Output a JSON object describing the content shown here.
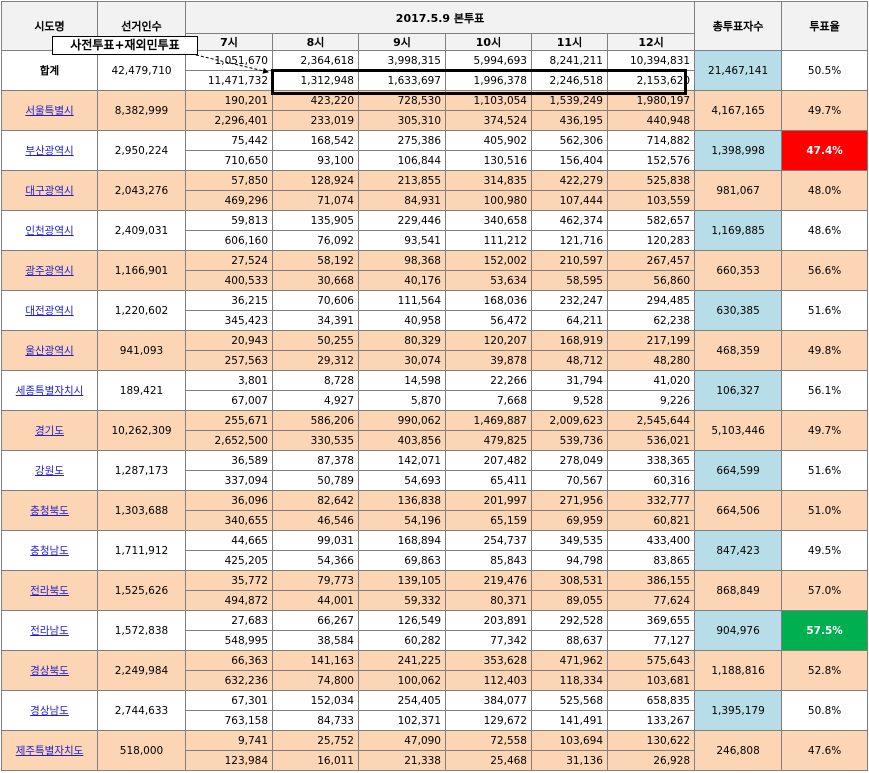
{
  "header": {
    "region": "시도명",
    "electors": "선거인수",
    "date": "2017.5.9 본투표",
    "hours": [
      "7시",
      "8시",
      "9시",
      "10시",
      "11시",
      "12시"
    ],
    "total": "총투표자수",
    "rate": "투표율"
  },
  "annotation": "사전투표+재외민투표",
  "rows": [
    {
      "name": "합계",
      "electors": "42,479,710",
      "line1": [
        "1,051,670",
        "2,364,618",
        "3,998,315",
        "5,994,693",
        "8,241,211",
        "10,394,831"
      ],
      "line2": [
        "11,471,732",
        "1,312,948",
        "1,633,697",
        "1,996,378",
        "2,246,518",
        "2,153,620"
      ],
      "total": "21,467,141",
      "rate": "50.5%"
    },
    {
      "name": "서울특별시",
      "electors": "8,382,999",
      "line1": [
        "190,201",
        "423,220",
        "728,530",
        "1,103,054",
        "1,539,249",
        "1,980,197"
      ],
      "line2": [
        "2,296,401",
        "233,019",
        "305,310",
        "374,524",
        "436,195",
        "440,948"
      ],
      "total": "4,167,165",
      "rate": "49.7%"
    },
    {
      "name": "부산광역시",
      "electors": "2,950,224",
      "line1": [
        "75,442",
        "168,542",
        "275,386",
        "405,902",
        "562,306",
        "714,882"
      ],
      "line2": [
        "710,650",
        "93,100",
        "106,844",
        "130,516",
        "156,404",
        "152,576"
      ],
      "total": "1,398,998",
      "rate": "47.4%"
    },
    {
      "name": "대구광역시",
      "electors": "2,043,276",
      "line1": [
        "57,850",
        "128,924",
        "213,855",
        "314,835",
        "422,279",
        "525,838"
      ],
      "line2": [
        "469,296",
        "71,074",
        "84,931",
        "100,980",
        "107,444",
        "103,559"
      ],
      "total": "981,067",
      "rate": "48.0%"
    },
    {
      "name": "인천광역시",
      "electors": "2,409,031",
      "line1": [
        "59,813",
        "135,905",
        "229,446",
        "340,658",
        "462,374",
        "582,657"
      ],
      "line2": [
        "606,160",
        "76,092",
        "93,541",
        "111,212",
        "121,716",
        "120,283"
      ],
      "total": "1,169,885",
      "rate": "48.6%"
    },
    {
      "name": "광주광역시",
      "electors": "1,166,901",
      "line1": [
        "27,524",
        "58,192",
        "98,368",
        "152,002",
        "210,597",
        "267,457"
      ],
      "line2": [
        "400,533",
        "30,668",
        "40,176",
        "53,634",
        "58,595",
        "56,860"
      ],
      "total": "660,353",
      "rate": "56.6%"
    },
    {
      "name": "대전광역시",
      "electors": "1,220,602",
      "line1": [
        "36,215",
        "70,606",
        "111,564",
        "168,036",
        "232,247",
        "294,485"
      ],
      "line2": [
        "345,423",
        "34,391",
        "40,958",
        "56,472",
        "64,211",
        "62,238"
      ],
      "total": "630,385",
      "rate": "51.6%"
    },
    {
      "name": "울산광역시",
      "electors": "941,093",
      "line1": [
        "20,943",
        "50,255",
        "80,329",
        "120,207",
        "168,919",
        "217,199"
      ],
      "line2": [
        "257,563",
        "29,312",
        "30,074",
        "39,878",
        "48,712",
        "48,280"
      ],
      "total": "468,359",
      "rate": "49.8%"
    },
    {
      "name": "세종특별자치시",
      "electors": "189,421",
      "line1": [
        "3,801",
        "8,728",
        "14,598",
        "22,266",
        "31,794",
        "41,020"
      ],
      "line2": [
        "67,007",
        "4,927",
        "5,870",
        "7,668",
        "9,528",
        "9,226"
      ],
      "total": "106,327",
      "rate": "56.1%"
    },
    {
      "name": "경기도",
      "electors": "10,262,309",
      "line1": [
        "255,671",
        "586,206",
        "990,062",
        "1,469,887",
        "2,009,623",
        "2,545,644"
      ],
      "line2": [
        "2,652,500",
        "330,535",
        "403,856",
        "479,825",
        "539,736",
        "536,021"
      ],
      "total": "5,103,446",
      "rate": "49.7%"
    },
    {
      "name": "강원도",
      "electors": "1,287,173",
      "line1": [
        "36,589",
        "87,378",
        "142,071",
        "207,482",
        "278,049",
        "338,365"
      ],
      "line2": [
        "337,094",
        "50,789",
        "54,693",
        "65,411",
        "70,567",
        "60,316"
      ],
      "total": "664,599",
      "rate": "51.6%"
    },
    {
      "name": "충청북도",
      "electors": "1,303,688",
      "line1": [
        "36,096",
        "82,642",
        "136,838",
        "201,997",
        "271,956",
        "332,777"
      ],
      "line2": [
        "340,655",
        "46,546",
        "54,196",
        "65,159",
        "69,959",
        "60,821"
      ],
      "total": "664,506",
      "rate": "51.0%"
    },
    {
      "name": "충청남도",
      "electors": "1,711,912",
      "line1": [
        "44,665",
        "99,031",
        "168,894",
        "254,737",
        "349,535",
        "433,400"
      ],
      "line2": [
        "425,205",
        "54,366",
        "69,863",
        "85,843",
        "94,798",
        "83,865"
      ],
      "total": "847,423",
      "rate": "49.5%"
    },
    {
      "name": "전라북도",
      "electors": "1,525,626",
      "line1": [
        "35,772",
        "79,773",
        "139,105",
        "219,476",
        "308,531",
        "386,155"
      ],
      "line2": [
        "494,872",
        "44,001",
        "59,332",
        "80,371",
        "89,055",
        "77,624"
      ],
      "total": "868,849",
      "rate": "57.0%"
    },
    {
      "name": "전라남도",
      "electors": "1,572,838",
      "line1": [
        "27,683",
        "66,267",
        "126,549",
        "203,891",
        "292,528",
        "369,655"
      ],
      "line2": [
        "548,995",
        "38,584",
        "60,282",
        "77,342",
        "88,637",
        "77,127"
      ],
      "total": "904,976",
      "rate": "57.5%"
    },
    {
      "name": "경상북도",
      "electors": "2,249,984",
      "line1": [
        "66,363",
        "141,163",
        "241,225",
        "353,628",
        "471,962",
        "575,643"
      ],
      "line2": [
        "632,236",
        "74,800",
        "100,062",
        "112,403",
        "118,334",
        "103,681"
      ],
      "total": "1,188,816",
      "rate": "52.8%"
    },
    {
      "name": "경상남도",
      "electors": "2,744,633",
      "line1": [
        "67,301",
        "152,034",
        "254,405",
        "384,077",
        "525,568",
        "658,835"
      ],
      "line2": [
        "763,158",
        "84,733",
        "102,371",
        "129,672",
        "141,491",
        "133,267"
      ],
      "total": "1,395,179",
      "rate": "50.8%"
    },
    {
      "name": "제주특별자치도",
      "electors": "518,000",
      "line1": [
        "9,741",
        "25,752",
        "47,090",
        "72,558",
        "103,694",
        "130,622"
      ],
      "line2": [
        "123,984",
        "16,011",
        "21,338",
        "25,468",
        "31,136",
        "26,928"
      ],
      "total": "246,808",
      "rate": "47.6%"
    }
  ]
}
